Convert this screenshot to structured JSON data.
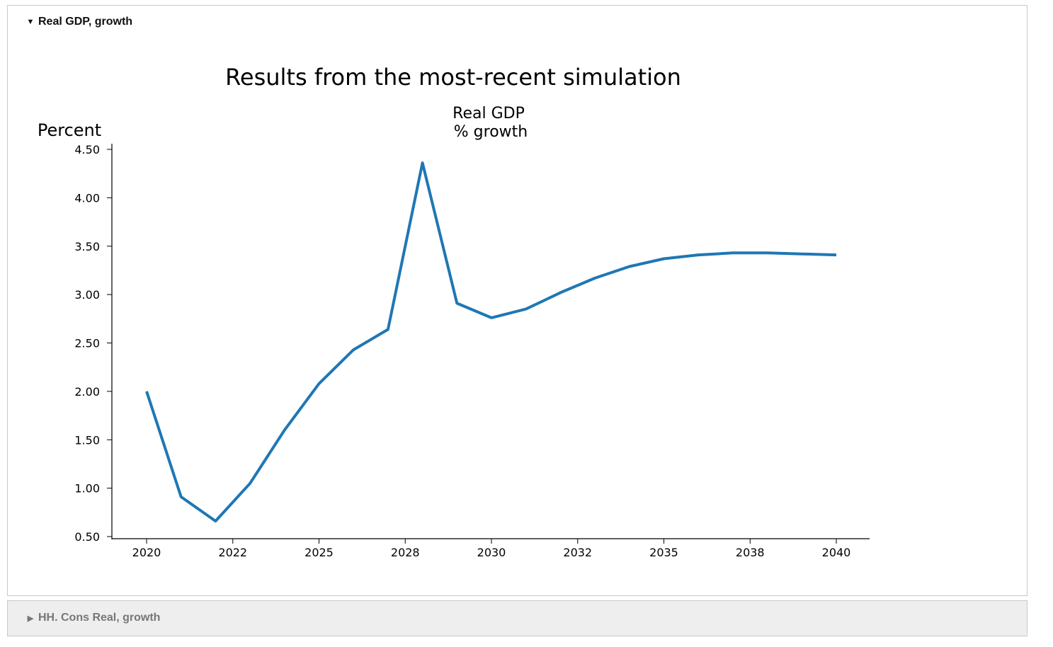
{
  "panels": [
    {
      "label": "Real GDP, growth",
      "expanded": true
    },
    {
      "label": "HH. Cons Real, growth",
      "expanded": false
    }
  ],
  "icons": {
    "expanded": "caret-down-icon",
    "collapsed": "caret-right-icon"
  },
  "colors": {
    "line": "#1f77b4",
    "collapsed_panel_bg": "#eeeeee"
  },
  "chart_data": {
    "type": "line",
    "title": "Results from the most-recent simulation",
    "subtitle_line1": "Real GDP",
    "subtitle_line2": "% growth",
    "ylabel": "Percent",
    "xlabel": "",
    "ylim": [
      0.5,
      4.5
    ],
    "yticks": [
      "0.50",
      "1.00",
      "1.50",
      "2.00",
      "2.50",
      "3.00",
      "3.50",
      "4.00",
      "4.50"
    ],
    "ytick_values": [
      0.5,
      1.0,
      1.5,
      2.0,
      2.5,
      3.0,
      3.5,
      4.0,
      4.5
    ],
    "xlim": [
      2020,
      2040
    ],
    "xticks": [
      "2020",
      "2022",
      "2025",
      "2028",
      "2030",
      "2032",
      "2035",
      "2038",
      "2040"
    ],
    "xtick_values": [
      2020,
      2022.5,
      2025,
      2027.5,
      2030,
      2032.5,
      2035,
      2037.5,
      2040
    ],
    "series": [
      {
        "name": "Real GDP % growth",
        "x": [
          2020,
          2021,
          2022,
          2023,
          2024,
          2025,
          2026,
          2027,
          2028,
          2029,
          2030,
          2031,
          2032,
          2033,
          2034,
          2035,
          2036,
          2037,
          2038,
          2039,
          2040
        ],
        "values": [
          2.0,
          0.91,
          0.66,
          1.05,
          1.6,
          2.08,
          2.43,
          2.64,
          4.36,
          2.91,
          2.76,
          2.85,
          3.02,
          3.17,
          3.29,
          3.37,
          3.41,
          3.43,
          3.43,
          3.42,
          3.41
        ]
      }
    ]
  }
}
